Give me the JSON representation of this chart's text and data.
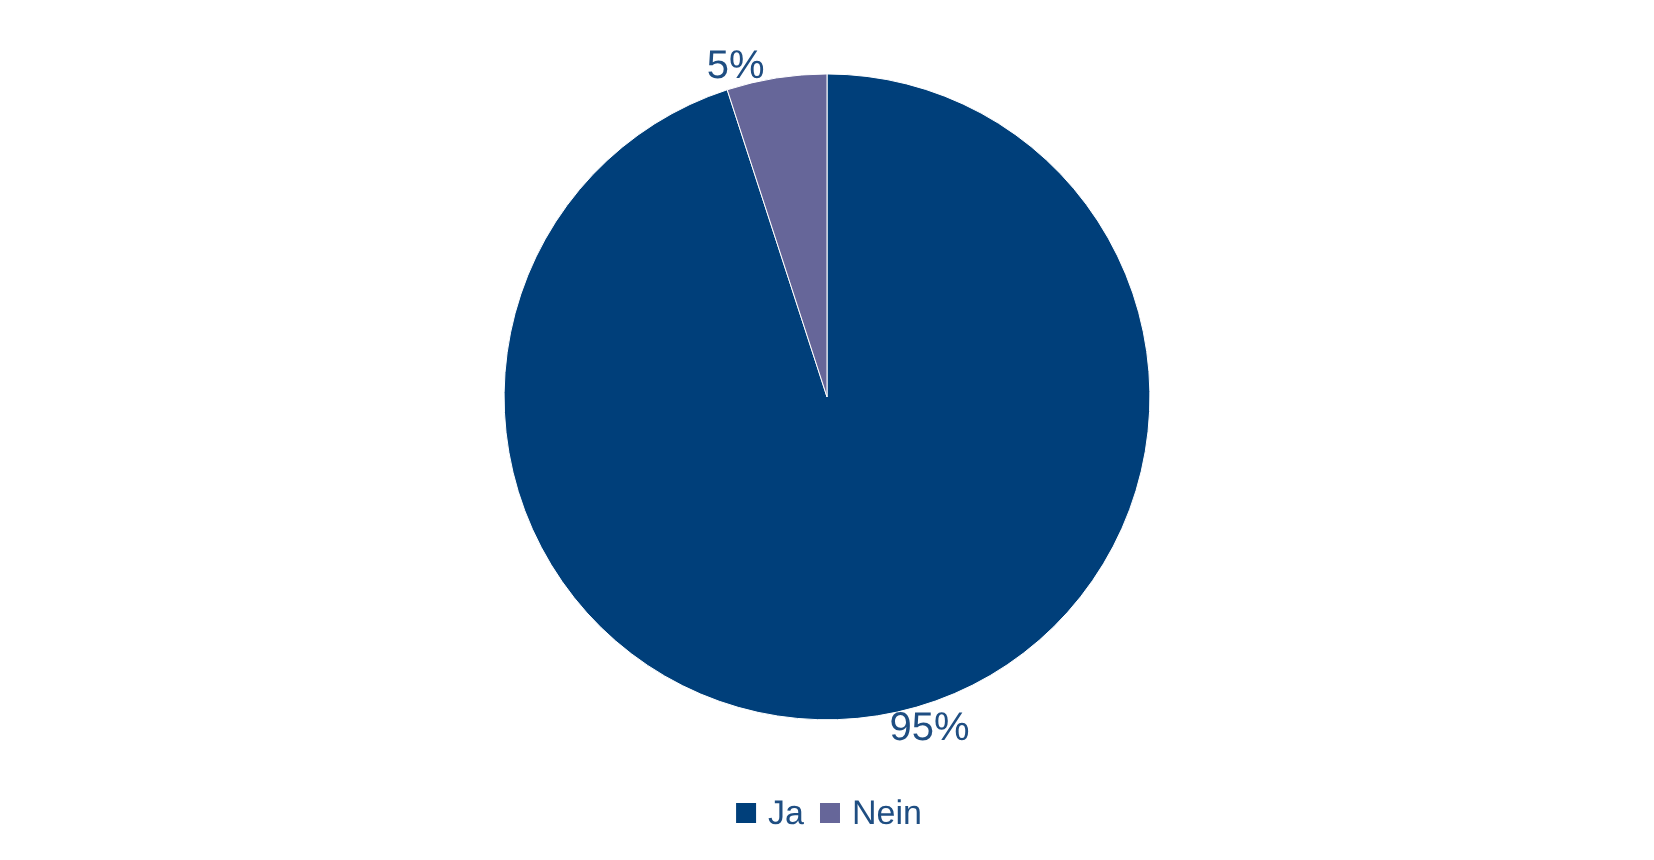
{
  "chart_data": {
    "type": "pie",
    "categories": [
      "Ja",
      "Nein"
    ],
    "values": [
      95,
      5
    ],
    "colors": [
      "#003f7a",
      "#666699"
    ],
    "value_labels": [
      "95%",
      "5%"
    ],
    "legend": "bottom"
  }
}
